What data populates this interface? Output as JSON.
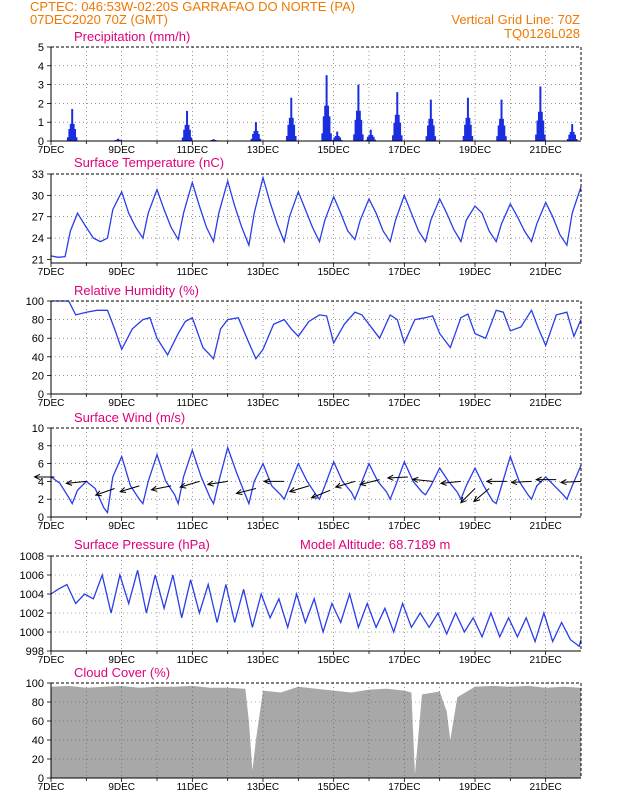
{
  "header": {
    "line1": "CPTEC:  046:53W-02:20S  GARRAFAO DO NORTE (PA)",
    "line2": "07DEC2020 70Z (GMT)",
    "grid_note": "Vertical Grid Line: 70Z",
    "code": "TQ0126L028"
  },
  "colors": {
    "line": "#2a3ee8",
    "bar": "#1a2ee0",
    "cloud": "#a8a8a8",
    "title": "#e0007a",
    "header": "#f07800",
    "arrow": "#000000"
  },
  "x_ticks": [
    "7DEC",
    "9DEC",
    "11DEC",
    "13DEC",
    "15DEC",
    "17DEC",
    "19DEC",
    "21DEC"
  ],
  "chart_data": [
    {
      "id": "precip",
      "type": "bar",
      "title": "Precipitation (mm/h)",
      "xlim_days": [
        7,
        22
      ],
      "ylim": [
        0,
        5
      ],
      "yticks": [
        0,
        1,
        2,
        3,
        4,
        5
      ],
      "bursts": [
        {
          "day": 7.6,
          "peak": 1.7
        },
        {
          "day": 8.9,
          "peak": 0.12
        },
        {
          "day": 10.85,
          "peak": 1.6
        },
        {
          "day": 11.6,
          "peak": 0.1
        },
        {
          "day": 12.8,
          "peak": 1.0
        },
        {
          "day": 13.8,
          "peak": 2.3
        },
        {
          "day": 14.8,
          "peak": 3.5
        },
        {
          "day": 15.1,
          "peak": 0.5
        },
        {
          "day": 15.7,
          "peak": 3.0
        },
        {
          "day": 16.05,
          "peak": 0.6
        },
        {
          "day": 16.8,
          "peak": 2.6
        },
        {
          "day": 17.75,
          "peak": 2.2
        },
        {
          "day": 18.8,
          "peak": 2.3
        },
        {
          "day": 19.75,
          "peak": 2.2
        },
        {
          "day": 20.85,
          "peak": 2.9
        },
        {
          "day": 21.75,
          "peak": 0.9
        }
      ]
    },
    {
      "id": "temp",
      "type": "line",
      "title": "Surface Temperature (nC)",
      "ylim": [
        20.5,
        33
      ],
      "yticks": [
        21,
        24,
        27,
        30,
        33
      ],
      "x": [
        7.0,
        7.2,
        7.4,
        7.55,
        7.75,
        8.0,
        8.2,
        8.4,
        8.6,
        8.75,
        9.0,
        9.2,
        9.4,
        9.6,
        9.75,
        10.0,
        10.2,
        10.4,
        10.6,
        10.75,
        11.0,
        11.2,
        11.4,
        11.6,
        11.75,
        12.0,
        12.2,
        12.4,
        12.6,
        12.75,
        13.0,
        13.2,
        13.4,
        13.6,
        13.75,
        14.0,
        14.2,
        14.4,
        14.6,
        14.75,
        15.0,
        15.2,
        15.4,
        15.6,
        15.75,
        16.0,
        16.2,
        16.4,
        16.6,
        16.75,
        17.0,
        17.2,
        17.4,
        17.6,
        17.75,
        18.0,
        18.2,
        18.4,
        18.6,
        18.75,
        19.0,
        19.2,
        19.4,
        19.6,
        19.75,
        20.0,
        20.2,
        20.4,
        20.6,
        20.75,
        21.0,
        21.2,
        21.4,
        21.6,
        21.75,
        22.0
      ],
      "y": [
        21.5,
        21.3,
        21.4,
        25.0,
        27.5,
        25.5,
        24.0,
        23.5,
        24.0,
        28.0,
        30.5,
        27.5,
        25.5,
        24.0,
        27.5,
        30.8,
        28.0,
        25.5,
        23.8,
        27.5,
        31.8,
        28.5,
        25.5,
        23.5,
        27.5,
        32.0,
        28.5,
        25.5,
        23.0,
        27.5,
        32.5,
        29.0,
        26.0,
        23.5,
        27.0,
        30.5,
        28.0,
        25.5,
        23.5,
        26.5,
        29.8,
        27.5,
        25.0,
        23.8,
        26.5,
        29.5,
        27.5,
        25.0,
        23.5,
        26.5,
        30.0,
        27.5,
        25.0,
        23.5,
        26.5,
        29.5,
        27.5,
        25.2,
        23.5,
        26.5,
        28.5,
        27.5,
        25.0,
        23.5,
        26.0,
        28.8,
        27.0,
        25.0,
        23.5,
        26.0,
        29.0,
        27.0,
        24.5,
        23.0,
        27.5,
        31.2
      ]
    },
    {
      "id": "rh",
      "type": "line",
      "title": "Relative Humidity (%)",
      "ylim": [
        0,
        100
      ],
      "yticks": [
        0,
        20,
        40,
        60,
        80,
        100
      ],
      "x": [
        7.0,
        7.3,
        7.5,
        7.7,
        8.0,
        8.3,
        8.6,
        8.8,
        9.0,
        9.3,
        9.6,
        9.8,
        10.0,
        10.3,
        10.6,
        10.8,
        11.0,
        11.3,
        11.6,
        11.8,
        12.0,
        12.3,
        12.6,
        12.8,
        13.0,
        13.3,
        13.6,
        13.8,
        14.0,
        14.3,
        14.6,
        14.8,
        15.0,
        15.3,
        15.6,
        15.8,
        16.0,
        16.3,
        16.6,
        16.8,
        17.0,
        17.3,
        17.6,
        17.8,
        18.0,
        18.3,
        18.6,
        18.8,
        19.0,
        19.3,
        19.6,
        19.8,
        20.0,
        20.3,
        20.6,
        20.8,
        21.0,
        21.3,
        21.6,
        21.8,
        22.0
      ],
      "y": [
        100,
        100,
        100,
        85,
        88,
        90,
        90,
        70,
        48,
        70,
        80,
        82,
        60,
        42,
        65,
        78,
        82,
        50,
        38,
        70,
        80,
        82,
        55,
        38,
        48,
        75,
        80,
        70,
        62,
        78,
        85,
        84,
        55,
        75,
        88,
        85,
        75,
        60,
        85,
        80,
        55,
        80,
        82,
        84,
        65,
        50,
        82,
        86,
        65,
        60,
        90,
        88,
        68,
        72,
        90,
        70,
        52,
        85,
        88,
        62,
        80
      ]
    },
    {
      "id": "wind",
      "type": "line",
      "title": "Surface Wind (m/s)",
      "ylim": [
        0,
        10
      ],
      "yticks": [
        0,
        2,
        4,
        6,
        8,
        10
      ],
      "x": [
        7.0,
        7.25,
        7.5,
        7.6,
        7.75,
        8.0,
        8.25,
        8.5,
        8.6,
        8.75,
        9.0,
        9.25,
        9.5,
        9.6,
        9.75,
        10.0,
        10.25,
        10.5,
        10.6,
        10.75,
        11.0,
        11.25,
        11.5,
        11.6,
        11.75,
        12.0,
        12.25,
        12.5,
        12.6,
        12.75,
        13.0,
        13.25,
        13.5,
        13.6,
        13.75,
        14.0,
        14.25,
        14.5,
        14.6,
        14.75,
        15.0,
        15.25,
        15.5,
        15.6,
        15.75,
        16.0,
        16.25,
        16.5,
        16.6,
        16.75,
        17.0,
        17.25,
        17.5,
        17.6,
        17.75,
        18.0,
        18.25,
        18.5,
        18.6,
        18.75,
        19.0,
        19.25,
        19.5,
        19.6,
        19.75,
        20.0,
        20.25,
        20.5,
        20.6,
        20.75,
        21.0,
        21.25,
        21.5,
        21.6,
        21.75,
        22.0
      ],
      "y": [
        4.5,
        3.8,
        2.2,
        1.5,
        3.0,
        4.0,
        3.2,
        1.0,
        0.5,
        4.5,
        6.8,
        3.5,
        2.0,
        1.5,
        4.0,
        7.0,
        4.0,
        2.5,
        1.5,
        4.5,
        7.5,
        4.5,
        2.2,
        1.5,
        4.0,
        7.8,
        5.0,
        2.5,
        1.5,
        4.0,
        6.0,
        3.5,
        2.5,
        2.0,
        3.5,
        6.0,
        4.0,
        2.5,
        2.0,
        3.5,
        6.2,
        4.0,
        2.8,
        2.0,
        3.5,
        6.0,
        4.0,
        2.8,
        2.0,
        3.5,
        6.2,
        4.0,
        2.8,
        2.5,
        3.5,
        5.5,
        4.0,
        2.8,
        2.0,
        3.5,
        5.5,
        3.5,
        1.8,
        1.5,
        3.5,
        6.8,
        4.0,
        2.5,
        2.0,
        3.5,
        4.5,
        3.5,
        2.5,
        2.0,
        3.5,
        5.8
      ],
      "arrows_note": "wind direction vectors",
      "arrows": [
        {
          "day": 7.1,
          "y": 4.5,
          "dx": -1,
          "dy": 0.0
        },
        {
          "day": 8.0,
          "y": 4.0,
          "dx": -1,
          "dy": -0.1
        },
        {
          "day": 8.8,
          "y": 3.2,
          "dx": -1,
          "dy": -0.35
        },
        {
          "day": 9.5,
          "y": 3.5,
          "dx": -1,
          "dy": -0.3
        },
        {
          "day": 10.4,
          "y": 3.5,
          "dx": -1,
          "dy": -0.2
        },
        {
          "day": 11.2,
          "y": 4.0,
          "dx": -1,
          "dy": -0.3
        },
        {
          "day": 12.0,
          "y": 4.0,
          "dx": -1,
          "dy": -0.15
        },
        {
          "day": 12.8,
          "y": 3.2,
          "dx": -1,
          "dy": -0.25
        },
        {
          "day": 13.6,
          "y": 4.0,
          "dx": -1,
          "dy": 0.0
        },
        {
          "day": 14.3,
          "y": 3.5,
          "dx": -1,
          "dy": -0.3
        },
        {
          "day": 14.9,
          "y": 3.0,
          "dx": -1,
          "dy": -0.4
        },
        {
          "day": 15.6,
          "y": 4.0,
          "dx": -1,
          "dy": -0.3
        },
        {
          "day": 16.3,
          "y": 4.2,
          "dx": -1,
          "dy": -0.25
        },
        {
          "day": 17.1,
          "y": 4.5,
          "dx": -1,
          "dy": -0.05
        },
        {
          "day": 17.8,
          "y": 4.0,
          "dx": -1,
          "dy": 0.1
        },
        {
          "day": 18.6,
          "y": 4.0,
          "dx": -1,
          "dy": -0.1
        },
        {
          "day": 19.0,
          "y": 3.2,
          "dx": -0.6,
          "dy": -0.6
        },
        {
          "day": 19.4,
          "y": 3.2,
          "dx": -0.7,
          "dy": -0.6
        },
        {
          "day": 19.9,
          "y": 4.0,
          "dx": -1,
          "dy": 0.0
        },
        {
          "day": 20.6,
          "y": 4.0,
          "dx": -1,
          "dy": -0.05
        },
        {
          "day": 21.3,
          "y": 4.2,
          "dx": -1,
          "dy": 0.0
        },
        {
          "day": 22.0,
          "y": 4.0,
          "dx": -1,
          "dy": -0.05
        }
      ]
    },
    {
      "id": "pres",
      "type": "line",
      "title": "Surface Pressure (hPa)",
      "subtitle": "Model Altitude: 68.7189 m",
      "ylim": [
        998,
        1008
      ],
      "yticks": [
        998,
        1000,
        1002,
        1004,
        1006,
        1008
      ],
      "x": [
        7.0,
        7.2,
        7.45,
        7.7,
        7.95,
        8.2,
        8.45,
        8.7,
        8.95,
        9.2,
        9.45,
        9.7,
        9.95,
        10.2,
        10.45,
        10.7,
        10.95,
        11.2,
        11.45,
        11.7,
        11.95,
        12.2,
        12.45,
        12.7,
        12.95,
        13.2,
        13.45,
        13.7,
        13.95,
        14.2,
        14.45,
        14.7,
        14.95,
        15.2,
        15.45,
        15.7,
        15.95,
        16.2,
        16.45,
        16.7,
        16.95,
        17.2,
        17.45,
        17.7,
        17.95,
        18.2,
        18.45,
        18.7,
        18.95,
        19.2,
        19.45,
        19.7,
        19.95,
        20.2,
        20.45,
        20.7,
        20.95,
        21.2,
        21.45,
        21.7,
        21.95,
        22.0
      ],
      "y": [
        1004.0,
        1004.5,
        1005.0,
        1003.0,
        1004.0,
        1003.5,
        1006.0,
        1002.0,
        1006.0,
        1003.0,
        1006.5,
        1002.0,
        1006.0,
        1002.5,
        1006.0,
        1001.5,
        1005.5,
        1002.0,
        1005.0,
        1001.0,
        1005.0,
        1001.0,
        1004.5,
        1000.5,
        1004.0,
        1001.5,
        1003.5,
        1000.5,
        1004.0,
        1001.0,
        1003.5,
        1000.0,
        1003.0,
        1001.0,
        1004.0,
        1000.5,
        1003.0,
        1000.5,
        1002.5,
        1000.0,
        1003.0,
        1000.5,
        1002.0,
        1000.5,
        1002.0,
        999.8,
        1002.0,
        1000.0,
        1001.5,
        999.5,
        1002.0,
        999.5,
        1001.5,
        999.5,
        1001.5,
        999.0,
        1002.0,
        999.0,
        1001.0,
        999.2,
        998.5,
        999.2
      ]
    },
    {
      "id": "cloud",
      "type": "area",
      "title": "Cloud Cover (%)",
      "ylim": [
        0,
        100
      ],
      "yticks": [
        0,
        20,
        40,
        60,
        80,
        100
      ],
      "x": [
        7.0,
        7.5,
        8.0,
        8.5,
        9.0,
        9.5,
        10.0,
        10.5,
        11.0,
        11.5,
        12.0,
        12.5,
        12.6,
        12.7,
        12.8,
        13.0,
        13.5,
        14.0,
        14.5,
        15.0,
        15.5,
        16.0,
        16.5,
        17.0,
        17.2,
        17.3,
        17.5,
        18.0,
        18.2,
        18.3,
        18.5,
        19.0,
        19.5,
        20.0,
        20.5,
        21.0,
        21.5,
        22.0
      ],
      "y": [
        96,
        97,
        95,
        96,
        97,
        95,
        96,
        96,
        97,
        95,
        95,
        94,
        60,
        8,
        40,
        92,
        90,
        96,
        94,
        92,
        90,
        93,
        94,
        92,
        90,
        4,
        88,
        91,
        70,
        40,
        85,
        96,
        97,
        96,
        97,
        95,
        96,
        95
      ]
    }
  ]
}
